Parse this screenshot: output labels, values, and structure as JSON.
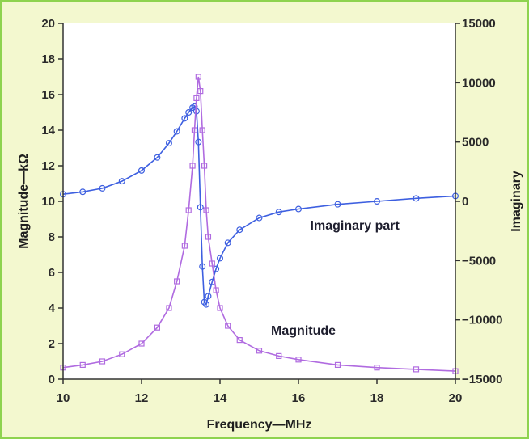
{
  "chart_data": {
    "type": "line",
    "xlabel": "Frequency—MHz",
    "ylabel": "Magnitude—kΩ",
    "y2label": "Imaginary",
    "xlim": [
      10,
      20
    ],
    "ylim": [
      0,
      20
    ],
    "y2lim": [
      -15000,
      15000
    ],
    "x_ticks": [
      "10",
      "12",
      "14",
      "16",
      "18",
      "20"
    ],
    "y_ticks": [
      "0",
      "2",
      "4",
      "6",
      "8",
      "10",
      "12",
      "14",
      "16",
      "18",
      "20"
    ],
    "y2_ticks": [
      "15000",
      "10000",
      "5000",
      "0",
      "−5000",
      "−10000",
      "−15000"
    ],
    "grid": false,
    "annotations": [
      {
        "text": "Imaginary part",
        "series": "imaginary"
      },
      {
        "text": "Magnitude",
        "series": "magnitude"
      }
    ],
    "series": [
      {
        "key": "imaginary",
        "axis": "right",
        "color": "#3d5fe0",
        "marker": "circle",
        "x": [
          10.0,
          10.5,
          11.0,
          11.5,
          12.0,
          12.4,
          12.7,
          12.9,
          13.1,
          13.2,
          13.3,
          13.35,
          13.4,
          13.45,
          13.5,
          13.55,
          13.6,
          13.65,
          13.7,
          13.8,
          13.9,
          14.0,
          14.2,
          14.5,
          15.0,
          15.5,
          16.0,
          17.0,
          18.0,
          19.0,
          20.0
        ],
        "y": [
          600,
          800,
          1100,
          1700,
          2600,
          3700,
          4900,
          5900,
          7000,
          7500,
          7900,
          8000,
          7600,
          5000,
          -500,
          -5500,
          -8500,
          -8700,
          -8000,
          -6800,
          -5700,
          -4800,
          -3500,
          -2400,
          -1400,
          -900,
          -650,
          -250,
          0,
          250,
          450
        ]
      },
      {
        "key": "magnitude",
        "axis": "left",
        "color": "#b06be0",
        "marker": "square",
        "x": [
          10.0,
          10.5,
          11.0,
          11.5,
          12.0,
          12.4,
          12.7,
          12.9,
          13.1,
          13.2,
          13.3,
          13.35,
          13.4,
          13.45,
          13.5,
          13.55,
          13.6,
          13.65,
          13.7,
          13.8,
          13.9,
          14.0,
          14.2,
          14.5,
          15.0,
          15.5,
          16.0,
          17.0,
          18.0,
          19.0,
          20.0
        ],
        "y": [
          0.65,
          0.8,
          1.0,
          1.4,
          2.0,
          2.9,
          4.0,
          5.5,
          7.5,
          9.5,
          12.0,
          14.0,
          15.8,
          17.0,
          16.2,
          14.0,
          12.0,
          9.5,
          8.0,
          6.5,
          5.0,
          4.0,
          3.0,
          2.2,
          1.6,
          1.3,
          1.1,
          0.8,
          0.65,
          0.55,
          0.45
        ]
      }
    ]
  }
}
